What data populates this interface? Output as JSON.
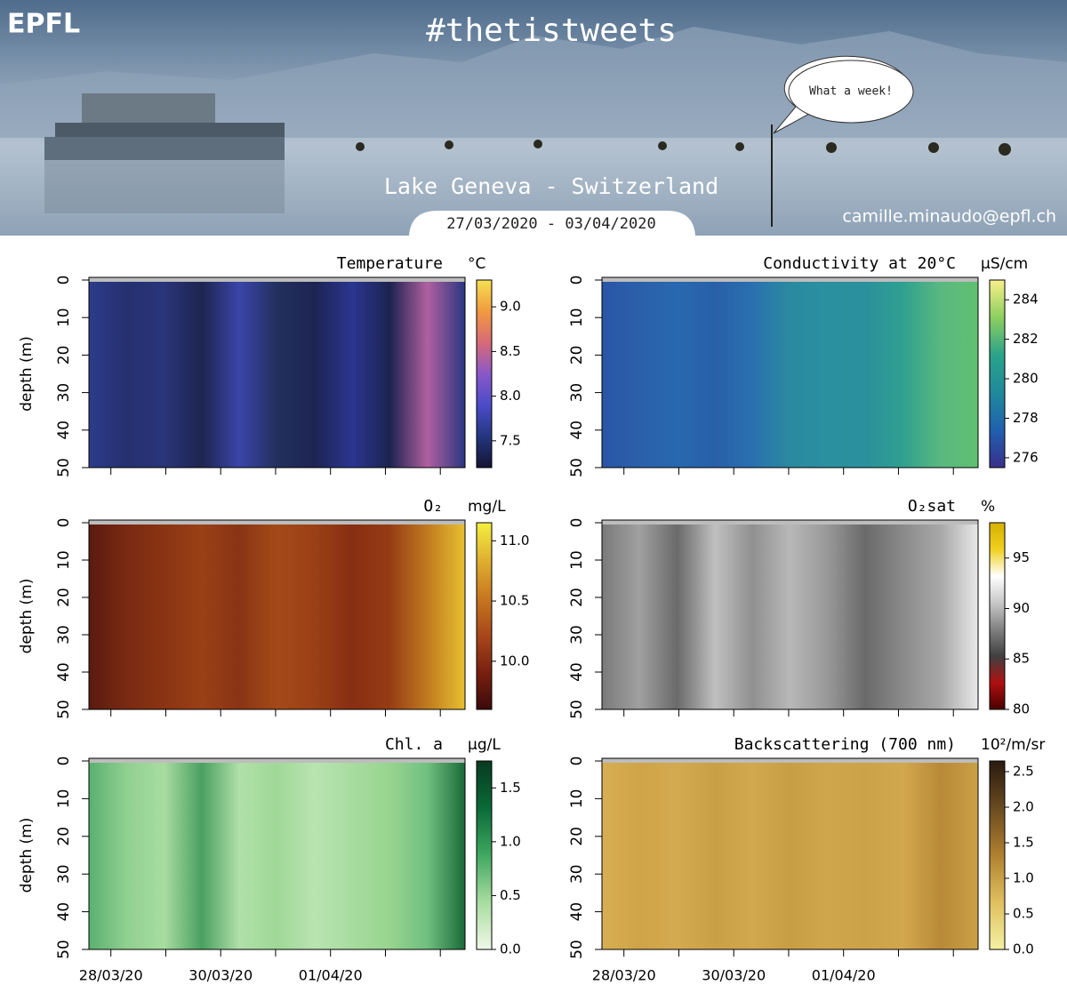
{
  "header": {
    "logo": "EPFL",
    "hashtag": "#thetistweets",
    "speech": "What a week!",
    "location": "Lake Geneva - Switzerland",
    "dates": "27/03/2020 - 03/04/2020",
    "email": "camille.minaudo@epfl.ch"
  },
  "chart_data": [
    {
      "type": "heatmap",
      "title": "Temperature",
      "unit": "°C",
      "ylabel": "depth (m)",
      "ylim": [
        0,
        50
      ],
      "y_reversed": true,
      "yticks": [
        0,
        10,
        20,
        30,
        40,
        50
      ],
      "zlim": [
        7.2,
        9.3
      ],
      "zticks": [
        {
          "value": 7.5,
          "label": "7.5"
        },
        {
          "value": 8,
          "label": "8.0"
        },
        {
          "value": 8.5,
          "label": "8.5"
        },
        {
          "value": 9,
          "label": "9.0"
        }
      ],
      "colorscale": [
        "#141432",
        "#253680",
        "#4a4cc8",
        "#8a58c8",
        "#d86a78",
        "#f09a40",
        "#f6e050"
      ]
    },
    {
      "type": "heatmap",
      "title": "Conductivity at 20°C",
      "unit": "µS/cm",
      "ylim": [
        0,
        50
      ],
      "y_reversed": true,
      "yticks": [
        0,
        10,
        20,
        30,
        40,
        50
      ],
      "zlim": [
        275.5,
        285
      ],
      "zticks": [
        276,
        278,
        280,
        282,
        284
      ],
      "colorscale": [
        "#3a2f8c",
        "#2060b0",
        "#1f8a9a",
        "#2aa38a",
        "#8ccf60",
        "#f8f088"
      ]
    },
    {
      "type": "heatmap",
      "title": "O₂",
      "unit": "mg/L",
      "ylabel": "depth (m)",
      "ylim": [
        0,
        50
      ],
      "y_reversed": true,
      "yticks": [
        0,
        10,
        20,
        30,
        40,
        50
      ],
      "zlim": [
        9.6,
        11.15
      ],
      "zticks": [
        {
          "value": 10,
          "label": "10.0"
        },
        {
          "value": 10.5,
          "label": "10.5"
        },
        {
          "value": 11,
          "label": "11.0"
        }
      ],
      "colorscale": [
        "#3a0a0a",
        "#7a2010",
        "#a8481a",
        "#c87820",
        "#e0b030",
        "#f4f040"
      ]
    },
    {
      "type": "heatmap",
      "title": "O₂sat",
      "unit": "%",
      "ylim": [
        0,
        50
      ],
      "y_reversed": true,
      "yticks": [
        0,
        10,
        20,
        30,
        40,
        50
      ],
      "zlim": [
        80,
        98.5
      ],
      "zticks": [
        80,
        85,
        90,
        95
      ],
      "colorscale": [
        "#4a0000",
        "#b01010",
        "#404040",
        "#808080",
        "#c8c8c8",
        "#ffffff",
        "#f0d020",
        "#d8b000"
      ]
    },
    {
      "type": "heatmap",
      "title": "Chl. a",
      "unit": "µg/L",
      "ylabel": "depth (m)",
      "ylim": [
        0,
        50
      ],
      "y_reversed": true,
      "yticks": [
        0,
        10,
        20,
        30,
        40,
        50
      ],
      "zlim": [
        0,
        1.75
      ],
      "zticks": [
        {
          "value": 0,
          "label": "0.0"
        },
        {
          "value": 0.5,
          "label": "0.5"
        },
        {
          "value": 1,
          "label": "1.0"
        },
        {
          "value": 1.5,
          "label": "1.5"
        }
      ],
      "colorscale": [
        "#f0f8e8",
        "#a8dca0",
        "#40a860",
        "#0a6a38",
        "#083a20"
      ],
      "categories": [
        "28/03/20",
        null,
        "30/03/20",
        null,
        "01/04/20",
        null,
        null
      ]
    },
    {
      "type": "heatmap",
      "title": "Backscattering (700 nm)",
      "unit": "10²/m/sr",
      "ylim": [
        0,
        50
      ],
      "y_reversed": true,
      "yticks": [
        0,
        10,
        20,
        30,
        40,
        50
      ],
      "zlim": [
        0,
        2.65
      ],
      "zticks": [
        {
          "value": 0,
          "label": "0.0"
        },
        {
          "value": 0.5,
          "label": "0.5"
        },
        {
          "value": 1,
          "label": "1.0"
        },
        {
          "value": 1.5,
          "label": "1.5"
        },
        {
          "value": 2,
          "label": "2.0"
        },
        {
          "value": 2.5,
          "label": "2.5"
        }
      ],
      "colorscale": [
        "#f4f0a0",
        "#e0c060",
        "#b08030",
        "#6a4a20",
        "#2a1a10"
      ],
      "categories": [
        "28/03/20",
        null,
        "30/03/20",
        null,
        "01/04/20",
        null,
        null
      ]
    }
  ]
}
